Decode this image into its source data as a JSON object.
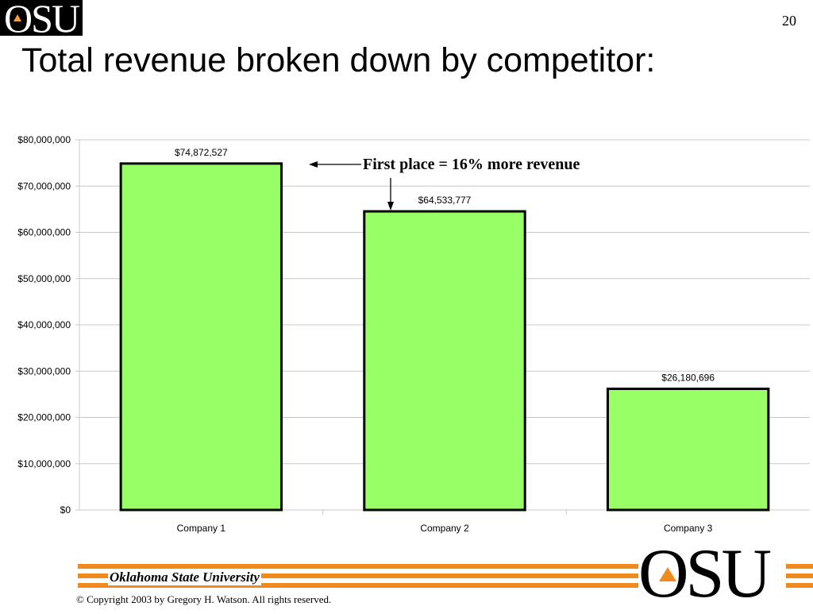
{
  "slide": {
    "number": "20",
    "title": "Total revenue broken down by competitor:",
    "logo_text": "OSU"
  },
  "footer": {
    "university": "Oklahoma State University",
    "copyright": "© Copyright 2003 by Gregory H. Watson. All rights reserved.",
    "logo_text": "OSU"
  },
  "colors": {
    "bar_fill": "#99ff66",
    "bar_stroke": "#000000",
    "accent": "#f08a1c"
  },
  "chart_data": {
    "type": "bar",
    "categories": [
      "Company 1",
      "Company 2",
      "Company 3"
    ],
    "values": [
      74872527,
      64533777,
      26180696
    ],
    "data_labels": [
      "$74,872,527",
      "$64,533,777",
      "$26,180,696"
    ],
    "ylim": [
      0,
      80000000
    ],
    "yticks": [
      0,
      10000000,
      20000000,
      30000000,
      40000000,
      50000000,
      60000000,
      70000000,
      80000000
    ],
    "ytick_labels": [
      "$0",
      "$10,000,000",
      "$20,000,000",
      "$30,000,000",
      "$40,000,000",
      "$50,000,000",
      "$60,000,000",
      "$70,000,000",
      "$80,000,000"
    ],
    "grid": true,
    "legend": "none",
    "annotation": "First place = 16% more revenue"
  }
}
